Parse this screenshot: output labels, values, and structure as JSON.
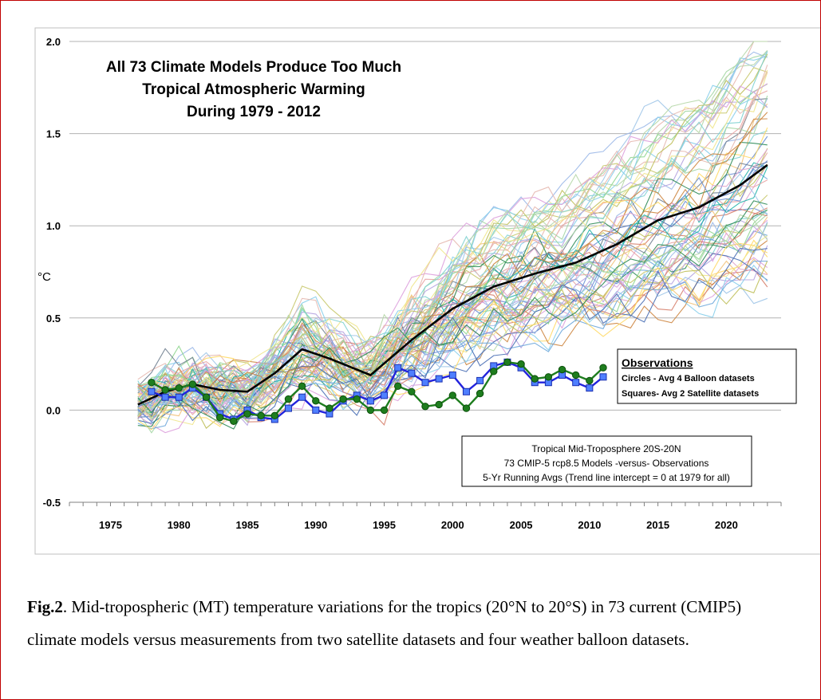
{
  "caption": {
    "lead": "Fig.2",
    "text": ". Mid-tropospheric (MT) temperature variations for the tropics (20°N to 20°S) in 73 current (CMIP5) climate models versus measurements from two satellite datasets and four weather balloon datasets."
  },
  "chart_data": {
    "type": "line",
    "title_lines": [
      "All 73 Climate Models Produce Too Much",
      "Tropical Atmospheric Warming",
      "During 1979 - 2012"
    ],
    "ylabel": "°C",
    "xlabel": "",
    "xlim": [
      1972,
      2024
    ],
    "ylim": [
      -0.5,
      2.0
    ],
    "x_ticks": [
      "1975",
      "1980",
      "1985",
      "1990",
      "1995",
      "2000",
      "2005",
      "2010",
      "2015",
      "2020"
    ],
    "y_ticks": [
      "2.0",
      "1.5",
      "1.0",
      "0.5",
      "0.0",
      "-0.5"
    ],
    "grid": "horizontal",
    "observations_legend": {
      "title": "Observations",
      "lines": [
        "Circles - Avg 4 Balloon datasets",
        "Squares- Avg 2 Satellite datasets"
      ]
    },
    "info_box": [
      "Tropical Mid-Troposphere 20S-20N",
      "73 CMIP-5 rcp8.5 Models -versus- Observations",
      "5-Yr Running Avgs (Trend line intercept = 0 at 1979 for all)"
    ],
    "model_ensemble_count": 73,
    "model_mean": {
      "x": [
        1977,
        1979,
        1981,
        1983,
        1985,
        1987,
        1989,
        1991,
        1994,
        1997,
        2000,
        2003,
        2006,
        2009,
        2012,
        2015,
        2018,
        2021,
        2023
      ],
      "y": [
        0.03,
        0.1,
        0.14,
        0.11,
        0.1,
        0.2,
        0.33,
        0.28,
        0.19,
        0.38,
        0.55,
        0.67,
        0.74,
        0.8,
        0.9,
        1.03,
        1.1,
        1.22,
        1.33
      ]
    },
    "balloon_avg": {
      "x": [
        1978,
        1979,
        1980,
        1981,
        1982,
        1983,
        1984,
        1985,
        1986,
        1987,
        1988,
        1989,
        1990,
        1991,
        1992,
        1993,
        1994,
        1995,
        1996,
        1997,
        1998,
        1999,
        2000,
        2001,
        2002,
        2003,
        2004,
        2005,
        2006,
        2007,
        2008,
        2009,
        2010,
        2011
      ],
      "y": [
        0.15,
        0.11,
        0.12,
        0.14,
        0.07,
        -0.04,
        -0.06,
        -0.02,
        -0.03,
        -0.03,
        0.06,
        0.13,
        0.05,
        0.01,
        0.06,
        0.06,
        0.0,
        0.0,
        0.13,
        0.1,
        0.02,
        0.03,
        0.08,
        0.01,
        0.09,
        0.21,
        0.26,
        0.25,
        0.17,
        0.18,
        0.22,
        0.19,
        0.16,
        0.23
      ]
    },
    "satellite_avg": {
      "x": [
        1978,
        1979,
        1980,
        1981,
        1982,
        1983,
        1984,
        1985,
        1986,
        1987,
        1988,
        1989,
        1990,
        1991,
        1992,
        1993,
        1994,
        1995,
        1996,
        1997,
        1998,
        1999,
        2000,
        2001,
        2002,
        2003,
        2004,
        2005,
        2006,
        2007,
        2008,
        2009,
        2010,
        2011
      ],
      "y": [
        0.1,
        0.07,
        0.07,
        0.12,
        0.07,
        -0.02,
        -0.05,
        0.0,
        -0.04,
        -0.05,
        0.01,
        0.07,
        0.0,
        -0.02,
        0.05,
        0.08,
        0.05,
        0.08,
        0.23,
        0.2,
        0.15,
        0.17,
        0.19,
        0.1,
        0.16,
        0.24,
        0.26,
        0.23,
        0.15,
        0.15,
        0.19,
        0.15,
        0.12,
        0.18
      ]
    },
    "colors": {
      "mean": "#000000",
      "balloon": "#1e7d1e",
      "satellite": "#2222dd",
      "satellite_marker": "#4f7fff",
      "grid": "#b3b3b3",
      "frame": "#c00000"
    }
  }
}
